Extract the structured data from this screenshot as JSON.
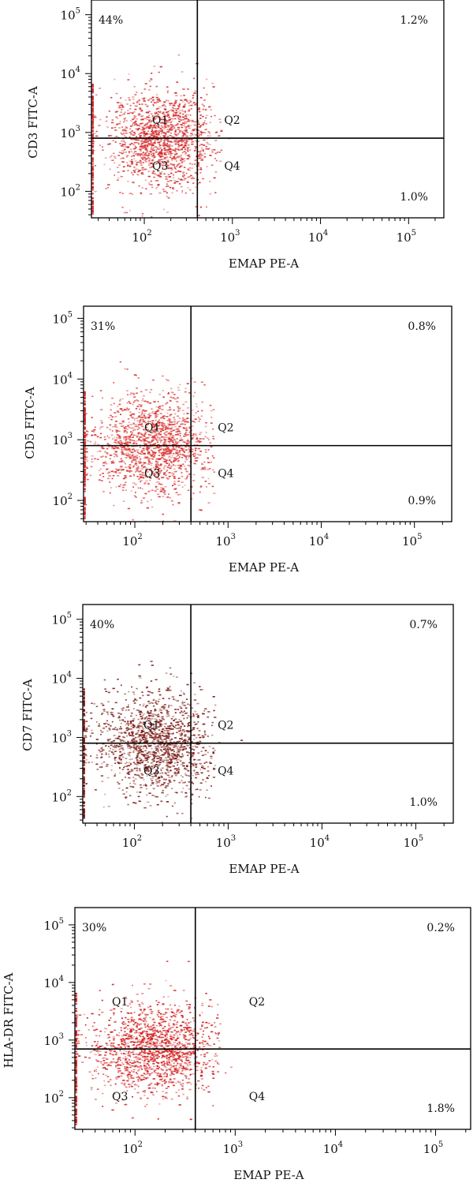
{
  "chart_data": [
    {
      "type": "scatter",
      "xlabel": "EMAP PE-A",
      "ylabel": "CD3 FITC-A",
      "x_ticks": [
        {
          "base": "10",
          "exp": "2"
        },
        {
          "base": "10",
          "exp": "3"
        },
        {
          "base": "10",
          "exp": "4"
        },
        {
          "base": "10",
          "exp": "5"
        }
      ],
      "y_ticks": [
        {
          "base": "10",
          "exp": "2"
        },
        {
          "base": "10",
          "exp": "3"
        },
        {
          "base": "10",
          "exp": "4"
        },
        {
          "base": "10",
          "exp": "5"
        }
      ],
      "xlim_log10": [
        1.4,
        5.4
      ],
      "ylim_log10": [
        1.55,
        5.25
      ],
      "gate": {
        "x": 400,
        "y": 800
      },
      "quadrant_labels": [
        "Q1",
        "Q2",
        "Q3",
        "Q4"
      ],
      "percentages": {
        "upper_left": "44%",
        "upper_right": "1.2%",
        "lower_right": "1.0%"
      },
      "point_color": "#d42a2a"
    },
    {
      "type": "scatter",
      "xlabel": "EMAP PE-A",
      "ylabel": "CD5 FITC-A",
      "x_ticks": [
        {
          "base": "10",
          "exp": "2"
        },
        {
          "base": "10",
          "exp": "3"
        },
        {
          "base": "10",
          "exp": "4"
        },
        {
          "base": "10",
          "exp": "5"
        }
      ],
      "y_ticks": [
        {
          "base": "10",
          "exp": "2"
        },
        {
          "base": "10",
          "exp": "3"
        },
        {
          "base": "10",
          "exp": "4"
        },
        {
          "base": "10",
          "exp": "5"
        }
      ],
      "xlim_log10": [
        1.45,
        5.4
      ],
      "ylim_log10": [
        1.65,
        5.2
      ],
      "gate": {
        "x": 400,
        "y": 800
      },
      "quadrant_labels": [
        "Q1",
        "Q2",
        "Q3",
        "Q4"
      ],
      "percentages": {
        "upper_left": "31%",
        "upper_right": "0.8%",
        "lower_right": "0.9%"
      },
      "point_color": "#d8322f"
    },
    {
      "type": "scatter",
      "xlabel": "EMAP PE-A",
      "ylabel": "CD7 FITC-A",
      "x_ticks": [
        {
          "base": "10",
          "exp": "2"
        },
        {
          "base": "10",
          "exp": "3"
        },
        {
          "base": "10",
          "exp": "4"
        },
        {
          "base": "10",
          "exp": "5"
        }
      ],
      "y_ticks": [
        {
          "base": "10",
          "exp": "2"
        },
        {
          "base": "10",
          "exp": "3"
        },
        {
          "base": "10",
          "exp": "4"
        },
        {
          "base": "10",
          "exp": "5"
        }
      ],
      "xlim_log10": [
        1.45,
        5.4
      ],
      "ylim_log10": [
        1.55,
        5.25
      ],
      "gate": {
        "x": 400,
        "y": 800
      },
      "quadrant_labels": [
        "Q1",
        "Q2",
        "Q3",
        "Q4"
      ],
      "percentages": {
        "upper_left": "40%",
        "upper_right": "0.7%",
        "lower_right": "1.0%"
      },
      "point_color": "#7a1a14"
    },
    {
      "type": "scatter",
      "xlabel": "EMAP PE-A",
      "ylabel": "HLA-DR FITC-A",
      "x_ticks": [
        {
          "base": "10",
          "exp": "2"
        },
        {
          "base": "10",
          "exp": "3"
        },
        {
          "base": "10",
          "exp": "4"
        },
        {
          "base": "10",
          "exp": "5"
        }
      ],
      "y_ticks": [
        {
          "base": "10",
          "exp": "2"
        },
        {
          "base": "10",
          "exp": "3"
        },
        {
          "base": "10",
          "exp": "4"
        },
        {
          "base": "10",
          "exp": "5"
        }
      ],
      "xlim_log10": [
        1.4,
        5.35
      ],
      "ylim_log10": [
        1.45,
        5.3
      ],
      "gate": {
        "x": 400,
        "y": 700
      },
      "quadrant_labels": [
        "Q1",
        "Q2",
        "Q3",
        "Q4"
      ],
      "percentages": {
        "upper_left": "30%",
        "upper_right": "0.2%",
        "lower_right": "1.8%"
      },
      "point_color": "#d21f1f"
    }
  ]
}
